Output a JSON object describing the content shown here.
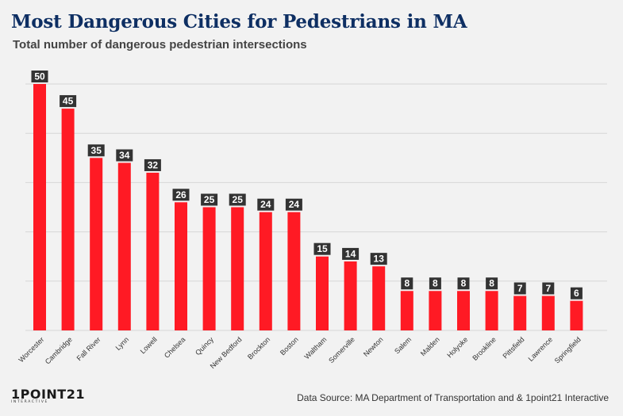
{
  "header": {
    "title": "Most Dangerous Cities for Pedestrians in MA",
    "subtitle": "Total number of dangerous pedestrian intersections"
  },
  "footer": {
    "logo_main": "1POINT21",
    "logo_sub": "INTERACTIVE",
    "source": "Data Source: MA Department of Transportation and & 1point21 Interactive"
  },
  "colors": {
    "bar": "#ff1a24",
    "label_bg": "#333333",
    "label_text": "#ffffff",
    "grid": "#d6d6d6",
    "title": "#0e2f63"
  },
  "chart_data": {
    "type": "bar",
    "title": "Most Dangerous Cities for Pedestrians in MA",
    "subtitle": "Total number of dangerous pedestrian intersections",
    "categories": [
      "Worcester",
      "Cambridge",
      "Fall River",
      "Lynn",
      "Lowell",
      "Chelsea",
      "Quincy",
      "New Bedford",
      "Brockton",
      "Boston",
      "Waltham",
      "Somerville",
      "Newton",
      "Salem",
      "Malden",
      "Holyoke",
      "Brookline",
      "Pittsfield",
      "Lawrence",
      "Springfield"
    ],
    "values": [
      50,
      45,
      35,
      34,
      32,
      26,
      25,
      25,
      24,
      24,
      15,
      14,
      13,
      8,
      8,
      8,
      8,
      7,
      7,
      6
    ],
    "ylim": [
      0,
      50
    ],
    "gridlines": [
      0,
      10,
      20,
      30,
      40,
      50
    ],
    "grid": true,
    "legend": "none",
    "data_labels": true
  }
}
